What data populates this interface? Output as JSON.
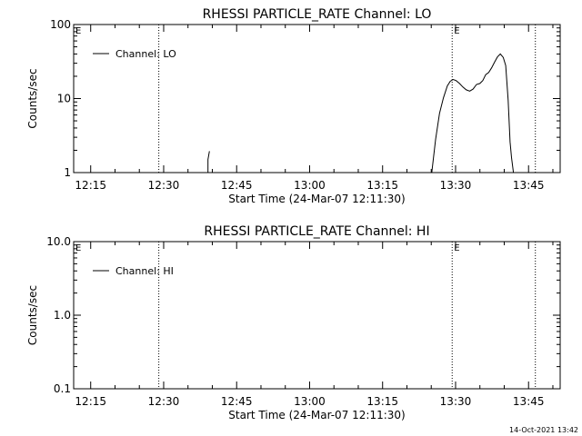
{
  "footer_timestamp": "14-Oct-2021 13:42",
  "chart_data": [
    {
      "type": "line",
      "title": "RHESSI PARTICLE_RATE Channel: LO",
      "xlabel": "Start Time (24-Mar-07 12:11:30)",
      "ylabel": "Counts/sec",
      "x_unit": "minutes after 12:11:30",
      "xlim": [
        0,
        100
      ],
      "x_ticks": [
        {
          "t": 3.5,
          "label": "12:15"
        },
        {
          "t": 18.5,
          "label": "12:30"
        },
        {
          "t": 33.5,
          "label": "12:45"
        },
        {
          "t": 48.5,
          "label": "13:00"
        },
        {
          "t": 63.5,
          "label": "13:15"
        },
        {
          "t": 78.5,
          "label": "13:30"
        },
        {
          "t": 93.5,
          "label": "13:45"
        }
      ],
      "y_scale": "log",
      "ylim": [
        1,
        100
      ],
      "y_ticks": [
        {
          "v": 1,
          "label": "1"
        },
        {
          "v": 10,
          "label": "10"
        },
        {
          "v": 100,
          "label": "100"
        }
      ],
      "legend": {
        "position": "top-left",
        "label": "Channel: LO"
      },
      "event_markers": [
        {
          "t": 0,
          "label": "E"
        },
        {
          "t": 77.8,
          "label": "E"
        }
      ],
      "vlines_dotted": [
        17.5,
        77.8,
        94.9
      ],
      "series": [
        {
          "x": [
            27.6,
            27.6,
            27.9
          ],
          "y": [
            1,
            1.5,
            1.95
          ]
        },
        {
          "x": [
            73.6,
            74.4,
            75.2,
            76.0,
            76.8,
            77.4,
            78.0,
            78.6,
            79.3,
            80.0,
            80.7,
            81.4,
            82.1,
            82.8,
            83.5,
            84.1,
            84.7,
            85.3,
            85.9,
            86.5,
            87.1,
            87.7,
            88.3,
            88.8,
            89.3,
            89.7,
            90.0,
            90.4
          ],
          "y": [
            1,
            2.8,
            6.3,
            10.2,
            14.8,
            17.1,
            18.1,
            17.5,
            16.0,
            14.3,
            13.1,
            12.6,
            13.4,
            15.5,
            16.0,
            17.5,
            21.0,
            22.5,
            26.0,
            31.0,
            36.5,
            40.0,
            36.0,
            28.0,
            9.5,
            2.6,
            1.6,
            1
          ]
        }
      ]
    },
    {
      "type": "line",
      "title": "RHESSI PARTICLE_RATE Channel: HI",
      "xlabel": "Start Time (24-Mar-07 12:11:30)",
      "ylabel": "Counts/sec",
      "x_unit": "minutes after 12:11:30",
      "xlim": [
        0,
        100
      ],
      "x_ticks": [
        {
          "t": 3.5,
          "label": "12:15"
        },
        {
          "t": 18.5,
          "label": "12:30"
        },
        {
          "t": 33.5,
          "label": "12:45"
        },
        {
          "t": 48.5,
          "label": "13:00"
        },
        {
          "t": 63.5,
          "label": "13:15"
        },
        {
          "t": 78.5,
          "label": "13:30"
        },
        {
          "t": 93.5,
          "label": "13:45"
        }
      ],
      "y_scale": "log",
      "ylim": [
        0.1,
        10
      ],
      "y_ticks": [
        {
          "v": 0.1,
          "label": "0.1"
        },
        {
          "v": 1,
          "label": "1.0"
        },
        {
          "v": 10,
          "label": "10.0"
        }
      ],
      "legend": {
        "position": "top-left",
        "label": "Channel: HI"
      },
      "event_markers": [
        {
          "t": 0,
          "label": "E"
        },
        {
          "t": 77.8,
          "label": "E"
        }
      ],
      "vlines_dotted": [
        17.5,
        77.8,
        94.9
      ],
      "series": []
    }
  ]
}
